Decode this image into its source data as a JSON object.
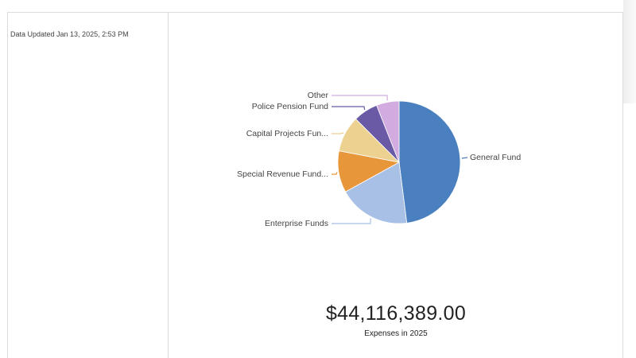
{
  "sidebar": {
    "updated": "Data Updated Jan 13, 2025, 2:53 PM"
  },
  "kpi": {
    "value": "$44,116,389.00",
    "label": "Expenses in 2025"
  },
  "chart_data": {
    "type": "pie",
    "slices": [
      {
        "label": "General Fund",
        "value": 48.0,
        "color": "#4a7fc0"
      },
      {
        "label": "Enterprise Funds",
        "value": 19.0,
        "color": "#a8bfe6"
      },
      {
        "label": "Special Revenue Fund...",
        "value": 11.0,
        "color": "#e8963a"
      },
      {
        "label": "Capital Projects Fun...",
        "value": 9.5,
        "color": "#ecd190"
      },
      {
        "label": "Police Pension Fund",
        "value": 6.5,
        "color": "#6a5aa6"
      },
      {
        "label": "Other",
        "value": 6.0,
        "color": "#d2ace0"
      }
    ]
  }
}
